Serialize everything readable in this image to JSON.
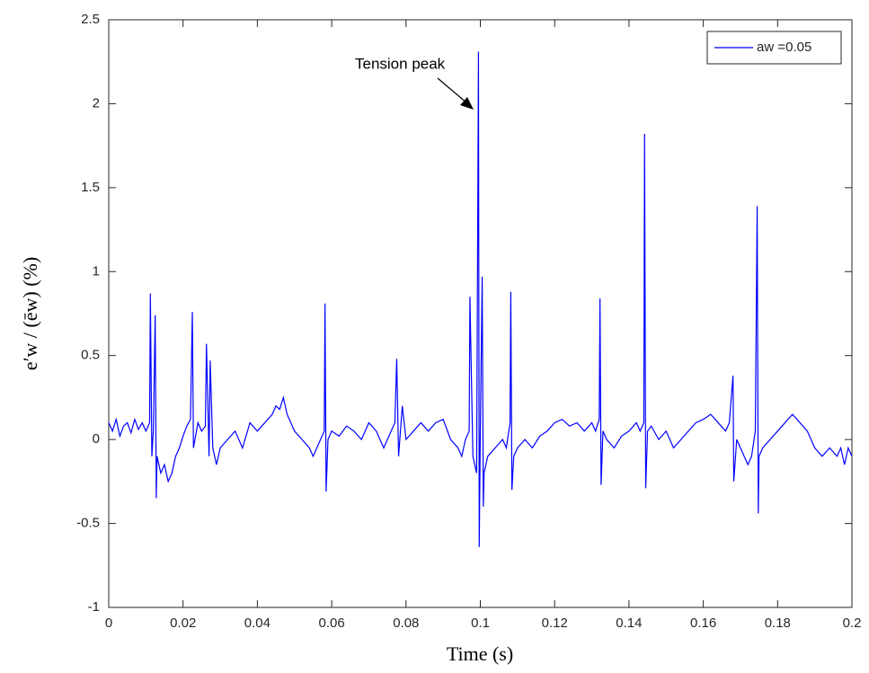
{
  "chart_data": {
    "type": "line",
    "xlabel": "Time (s)",
    "ylabel": "e′w / (ēw) (%)",
    "annotation": "Tension peak",
    "xlim": [
      0,
      0.2
    ],
    "ylim": [
      -1,
      2.5
    ],
    "xticks": [
      0,
      0.02,
      0.04,
      0.06,
      0.08,
      0.1,
      0.12,
      0.14,
      0.16,
      0.18,
      0.2
    ],
    "yticks": [
      -1,
      -0.5,
      0,
      0.5,
      1,
      1.5,
      2,
      2.5
    ],
    "legend": "upper right",
    "x": [
      0,
      0.001,
      0.002,
      0.003,
      0.004,
      0.005,
      0.006,
      0.007,
      0.008,
      0.009,
      0.01,
      0.011,
      0.0112,
      0.0116,
      0.012,
      0.0125,
      0.0128,
      0.013,
      0.014,
      0.015,
      0.016,
      0.017,
      0.018,
      0.019,
      0.02,
      0.021,
      0.022,
      0.0225,
      0.0228,
      0.024,
      0.025,
      0.026,
      0.0263,
      0.027,
      0.0273,
      0.028,
      0.029,
      0.03,
      0.032,
      0.034,
      0.036,
      0.038,
      0.04,
      0.042,
      0.044,
      0.045,
      0.046,
      0.047,
      0.048,
      0.05,
      0.052,
      0.054,
      0.055,
      0.056,
      0.057,
      0.058,
      0.0582,
      0.0585,
      0.059,
      0.06,
      0.062,
      0.064,
      0.066,
      0.068,
      0.07,
      0.072,
      0.074,
      0.076,
      0.077,
      0.0775,
      0.078,
      0.079,
      0.08,
      0.082,
      0.084,
      0.086,
      0.088,
      0.09,
      0.092,
      0.094,
      0.095,
      0.096,
      0.097,
      0.0972,
      0.098,
      0.099,
      0.0995,
      0.0997,
      0.1,
      0.1005,
      0.1008,
      0.101,
      0.102,
      0.104,
      0.106,
      0.107,
      0.108,
      0.1082,
      0.1085,
      0.109,
      0.11,
      0.112,
      0.114,
      0.116,
      0.118,
      0.12,
      0.122,
      0.124,
      0.126,
      0.128,
      0.13,
      0.131,
      0.132,
      0.1322,
      0.1325,
      0.133,
      0.134,
      0.136,
      0.138,
      0.14,
      0.142,
      0.143,
      0.144,
      0.1442,
      0.1445,
      0.145,
      0.146,
      0.148,
      0.15,
      0.152,
      0.154,
      0.156,
      0.158,
      0.16,
      0.162,
      0.164,
      0.166,
      0.167,
      0.168,
      0.1682,
      0.169,
      0.17,
      0.172,
      0.173,
      0.174,
      0.1745,
      0.1748,
      0.175,
      0.176,
      0.178,
      0.18,
      0.182,
      0.184,
      0.186,
      0.188,
      0.19,
      0.192,
      0.194,
      0.196,
      0.197,
      0.198,
      0.199,
      0.2
    ],
    "series": [
      {
        "name": "aw =0.05",
        "color": "#0000ff",
        "values": [
          0.1,
          0.05,
          0.12,
          0.02,
          0.08,
          0.1,
          0.04,
          0.12,
          0.06,
          0.1,
          0.05,
          0.1,
          0.87,
          -0.1,
          0.05,
          0.74,
          -0.35,
          -0.1,
          -0.2,
          -0.15,
          -0.25,
          -0.2,
          -0.1,
          -0.05,
          0.02,
          0.08,
          0.12,
          0.76,
          -0.05,
          0.1,
          0.05,
          0.08,
          0.57,
          -0.1,
          0.47,
          -0.05,
          -0.15,
          -0.05,
          0.0,
          0.05,
          -0.05,
          0.1,
          0.05,
          0.1,
          0.15,
          0.2,
          0.18,
          0.25,
          0.15,
          0.05,
          0.0,
          -0.05,
          -0.1,
          -0.05,
          0.0,
          0.05,
          0.81,
          -0.31,
          0.0,
          0.05,
          0.02,
          0.08,
          0.05,
          0.0,
          0.1,
          0.05,
          -0.05,
          0.05,
          0.1,
          0.48,
          -0.1,
          0.2,
          0.0,
          0.05,
          0.1,
          0.05,
          0.1,
          0.12,
          0.0,
          -0.05,
          -0.1,
          0.0,
          0.05,
          0.85,
          -0.1,
          -0.2,
          2.31,
          -0.64,
          0.05,
          0.97,
          -0.4,
          -0.2,
          -0.1,
          -0.05,
          0.0,
          -0.05,
          0.1,
          0.88,
          -0.3,
          -0.1,
          -0.05,
          0.0,
          -0.05,
          0.02,
          0.05,
          0.1,
          0.12,
          0.08,
          0.1,
          0.05,
          0.1,
          0.05,
          0.12,
          0.84,
          -0.27,
          0.05,
          0.0,
          -0.05,
          0.02,
          0.05,
          0.1,
          0.05,
          0.1,
          1.82,
          -0.29,
          0.05,
          0.08,
          0.0,
          0.05,
          -0.05,
          0.0,
          0.05,
          0.1,
          0.12,
          0.15,
          0.1,
          0.05,
          0.1,
          0.38,
          -0.25,
          0.0,
          -0.05,
          -0.15,
          -0.1,
          0.05,
          1.39,
          -0.44,
          -0.1,
          -0.05,
          0.0,
          0.05,
          0.1,
          0.15,
          0.1,
          0.05,
          -0.05,
          -0.1,
          -0.05,
          -0.1,
          -0.05,
          -0.15,
          -0.05,
          -0.1
        ]
      }
    ]
  }
}
